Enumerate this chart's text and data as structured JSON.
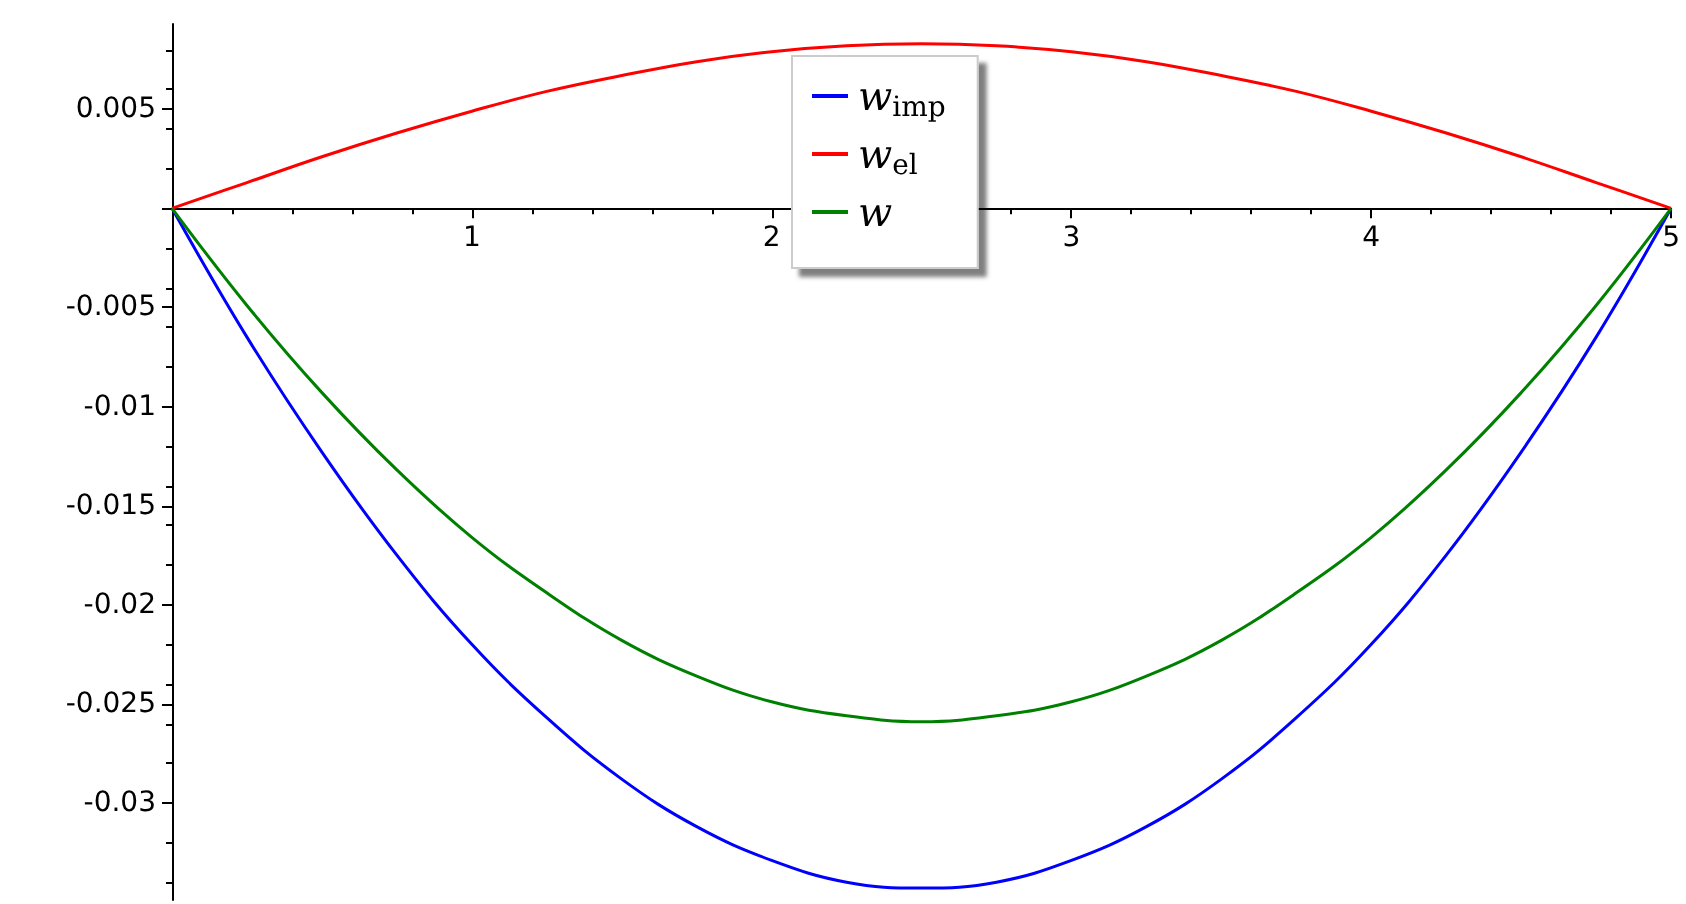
{
  "chart_data": {
    "type": "line",
    "x": [
      0,
      0.25,
      0.5,
      0.75,
      1,
      1.25,
      1.5,
      1.75,
      2,
      2.25,
      2.5,
      2.75,
      3,
      3.25,
      3.5,
      3.75,
      4,
      4.25,
      4.5,
      4.75,
      5
    ],
    "series": [
      {
        "name": "w$_{imp}$",
        "color": "#0000ff",
        "values": [
          0,
          -0.0065,
          -0.0123,
          -0.0175,
          -0.022,
          -0.0257,
          -0.0288,
          -0.0312,
          -0.0329,
          -0.034,
          -0.0343,
          -0.034,
          -0.0329,
          -0.0312,
          -0.0288,
          -0.0257,
          -0.022,
          -0.0175,
          -0.0123,
          -0.0065,
          0
        ]
      },
      {
        "name": "w$_{el}$",
        "color": "#ff0000",
        "values": [
          0,
          0.0013,
          0.0026,
          0.0038,
          0.0049,
          0.0059,
          0.0067,
          0.0074,
          0.0079,
          0.0082,
          0.0083,
          0.0082,
          0.0079,
          0.0074,
          0.0067,
          0.0059,
          0.0049,
          0.0038,
          0.0026,
          0.0013,
          0
        ]
      },
      {
        "name": "w",
        "color": "#008000",
        "values": [
          0,
          -0.0049,
          -0.0093,
          -0.0132,
          -0.0166,
          -0.0194,
          -0.0218,
          -0.0236,
          -0.0249,
          -0.0256,
          -0.0259,
          -0.0256,
          -0.0249,
          -0.0236,
          -0.0218,
          -0.0194,
          -0.0166,
          -0.0132,
          -0.0093,
          -0.0049,
          0
        ]
      }
    ],
    "xlim": [
      0,
      5
    ],
    "xticks": [
      1,
      2,
      3,
      4,
      5
    ],
    "ylim": [
      -0.0349,
      0.0093
    ],
    "yticks": [
      -0.03,
      -0.025,
      -0.02,
      -0.015,
      -0.01,
      -0.005,
      {
        "value": 0,
        "label": null
      },
      0.005
    ],
    "grid": false,
    "legend": "top",
    "marker": "none",
    "line_style": "solid"
  }
}
